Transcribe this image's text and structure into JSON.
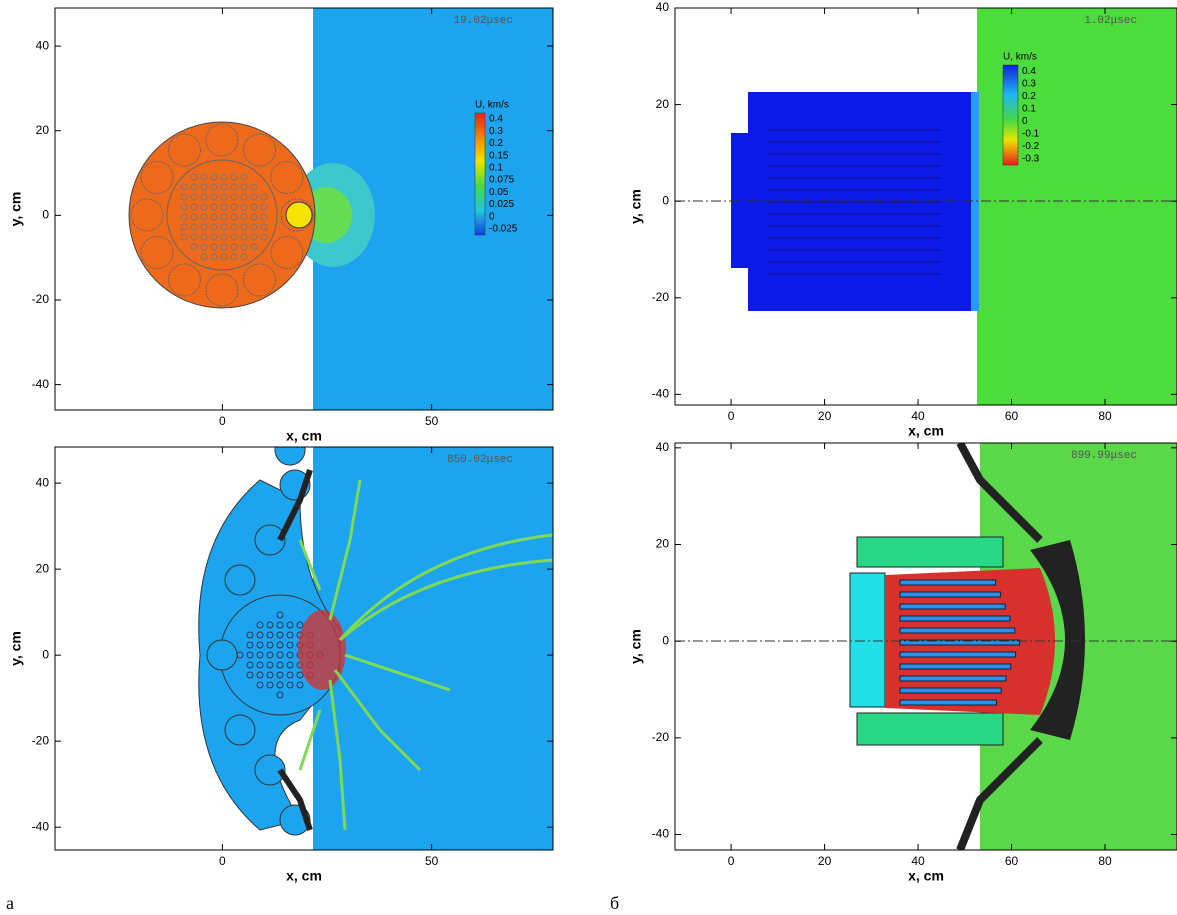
{
  "panels": [
    {
      "time": "19.02μsec",
      "xlabel": "x, cm",
      "ylabel": "y, cm",
      "xlim": [
        -40,
        79
      ],
      "ylim": [
        -46,
        49
      ],
      "xticks": [
        0,
        50
      ],
      "yticks": [
        -40,
        -20,
        0,
        20,
        40
      ],
      "colorbar": {
        "title": "U, km/s",
        "levels": [
          0.4,
          0.3,
          0.2,
          0.15,
          0.1,
          0.075,
          0.05,
          0.025,
          0,
          -0.025
        ]
      }
    },
    {
      "time": "1.02μsec",
      "xlabel": "x, cm",
      "ylabel": "y, cm",
      "xlim": [
        -12,
        95.4
      ],
      "ylim": [
        -42.2,
        40
      ],
      "xticks": [
        0,
        20,
        40,
        60,
        80
      ],
      "yticks": [
        -40,
        -20,
        0,
        20,
        40
      ],
      "colorbar": {
        "title": "U, km/s",
        "levels": [
          0.4,
          0.3,
          0.2,
          0.1,
          0,
          -0.1,
          -0.2,
          -0.3
        ]
      }
    },
    {
      "time": "850.02μsec",
      "xlabel": "x, cm",
      "ylabel": "y, cm",
      "xlim": [
        -40,
        79
      ],
      "ylim": [
        -45.3,
        48.4
      ],
      "xticks": [
        0,
        50
      ],
      "yticks": [
        -40,
        -20,
        0,
        20,
        40
      ]
    },
    {
      "time": "899.99μsec",
      "xlabel": "x, cm",
      "ylabel": "y, cm",
      "xlim": [
        -12,
        95.4
      ],
      "ylim": [
        -43.2,
        41
      ],
      "xticks": [
        0,
        20,
        40,
        60,
        80
      ],
      "yticks": [
        -40,
        -20,
        0,
        20,
        40
      ]
    }
  ],
  "captions": [
    "а",
    "б"
  ]
}
